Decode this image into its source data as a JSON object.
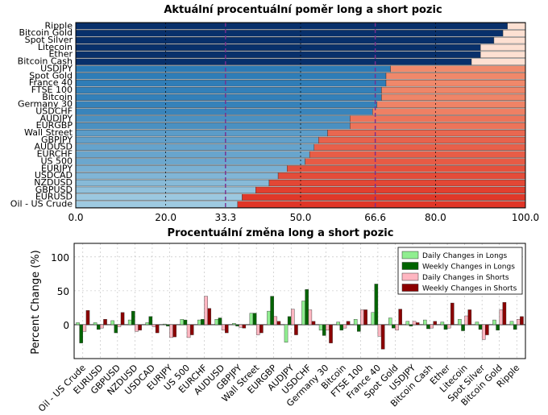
{
  "chart_data": [
    {
      "type": "bar",
      "orientation": "horizontal",
      "stacked": true,
      "title": "Aktuální procentuální poměr long a short pozic",
      "categories": [
        "Ripple",
        "Bitcoin Gold",
        "Spot Silver",
        "Litecoin",
        "Ether",
        "Bitcoin Cash",
        "USDJPY",
        "Spot Gold",
        "France 40",
        "FTSE 100",
        "Bitcoin",
        "Germany 30",
        "USDCHF",
        "AUDJPY",
        "EURGBP",
        "Wall Street",
        "GBPJPY",
        "AUDUSD",
        "EURCHF",
        "US 500",
        "EURJPY",
        "USDCAD",
        "NZDUSD",
        "GBPUSD",
        "EURUSD",
        "Oil - US Crude"
      ],
      "long_values": [
        96,
        95,
        93,
        90,
        90,
        88,
        70,
        69,
        69,
        68,
        68,
        67,
        66,
        61,
        61,
        56,
        54,
        53,
        52,
        51,
        47,
        45,
        43,
        40,
        37,
        36
      ],
      "xlim": [
        0,
        100
      ],
      "xticks": [
        "0.0",
        "20.0",
        "33.3",
        "50.0",
        "66.6",
        "80.0",
        "100.0"
      ],
      "grid": true,
      "colors": {
        "long_dark": "#08306b",
        "long_mid": "#2c7bb6",
        "long_light": "#9ecae1",
        "short_light": "#fde0d2",
        "short_dark": "#e03527",
        "marker_line": "#7b2d8e"
      }
    },
    {
      "type": "bar",
      "title": "Procentuální změna long a short pozic",
      "ylabel": "Percent Change (%)",
      "ylim": [
        -50,
        120
      ],
      "yticks": [
        "100",
        "50",
        "0"
      ],
      "grid": true,
      "legend_position": "top-right",
      "categories": [
        "Oil - US Crude",
        "EURUSD",
        "GBPUSD",
        "NZDUSD",
        "USDCAD",
        "EURJPY",
        "US 500",
        "EURCHF",
        "AUDUSD",
        "GBPJPY",
        "Wall Street",
        "EURGBP",
        "AUDJPY",
        "USDCHF",
        "Germany 30",
        "Bitcoin",
        "FTSE 100",
        "France 40",
        "Spot Gold",
        "USDJPY",
        "Bitcoin Cash",
        "Ether",
        "Litecoin",
        "Spot Silver",
        "Bitcoin Gold",
        "Ripple"
      ],
      "series": [
        {
          "name": "Daily Changes in Longs",
          "color": "#90ee90",
          "values": [
            3,
            3,
            6,
            7,
            3,
            1,
            8,
            7,
            8,
            2,
            17,
            20,
            -26,
            35,
            -8,
            4,
            8,
            18,
            10,
            5,
            7,
            4,
            8,
            4,
            7,
            5
          ]
        },
        {
          "name": "Weekly Changes in Longs",
          "color": "#006400",
          "values": [
            -27,
            -7,
            -12,
            20,
            12,
            -2,
            7,
            8,
            10,
            -2,
            17,
            42,
            12,
            52,
            -16,
            -8,
            -10,
            60,
            -5,
            -2,
            -6,
            -7,
            -9,
            -7,
            -8,
            -7
          ]
        },
        {
          "name": "Daily Changes in Shorts",
          "color": "#ffb6c1",
          "values": [
            -10,
            -5,
            -3,
            -10,
            -3,
            -19,
            -19,
            42,
            -8,
            -4,
            -15,
            12,
            23,
            22,
            -8,
            -5,
            22,
            -17,
            -8,
            5,
            -5,
            -5,
            13,
            -22,
            22,
            8
          ]
        },
        {
          "name": "Weekly Changes in Shorts",
          "color": "#8b0000",
          "values": [
            21,
            8,
            18,
            -8,
            -12,
            -18,
            -15,
            24,
            -12,
            -5,
            -12,
            5,
            -15,
            5,
            -27,
            5,
            22,
            -36,
            23,
            3,
            5,
            32,
            22,
            -15,
            33,
            12
          ]
        }
      ]
    }
  ]
}
